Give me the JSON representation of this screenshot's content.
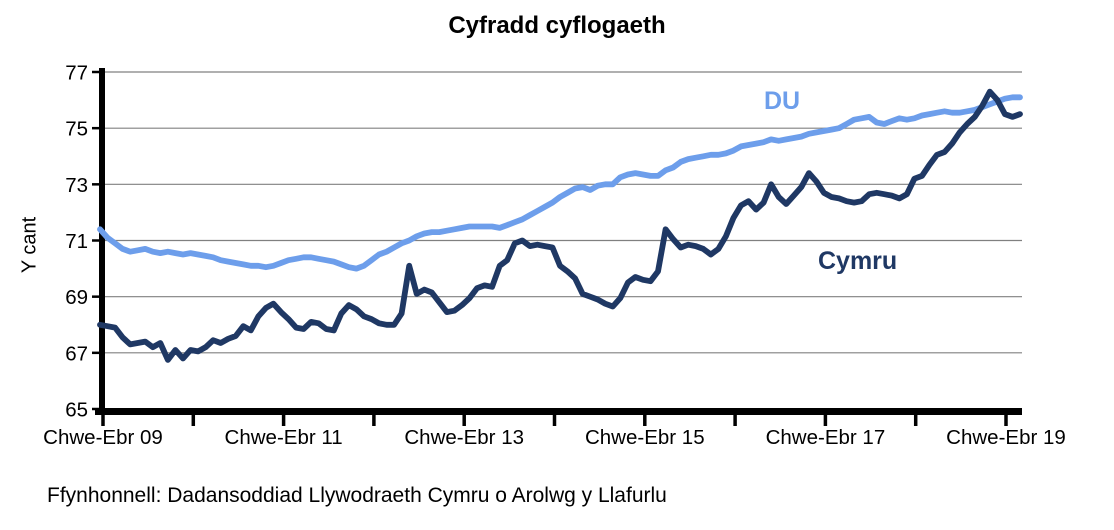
{
  "page": {
    "title": "Cyfradd cyflogaeth",
    "source": "Ffynhonnell: Dadansoddiad Llywodraeth Cymru o Arolwg y Llafurlu"
  },
  "colors": {
    "du": "#6D9EEB",
    "cymru": "#1F3864",
    "axis": "#000000",
    "grid": "#808080",
    "text": "#000000"
  },
  "chart_data": {
    "type": "line",
    "title": "Cyfradd cyflogaeth",
    "xlabel": "",
    "ylabel": "Y cant",
    "ylim": [
      65,
      77
    ],
    "yticks": [
      65,
      67,
      69,
      71,
      73,
      75,
      77
    ],
    "grid": "horizontal gridlines at each y tick",
    "legend_position": "inline labels next to lines",
    "x_tick_labels": [
      "Chwe-Ebr 09",
      "Chwe-Ebr 11",
      "Chwe-Ebr 13",
      "Chwe-Ebr 15",
      "Chwe-Ebr 17",
      "Chwe-Ebr 19"
    ],
    "x_num_minor_ticks": 11,
    "series": [
      {
        "name": "DU",
        "color": "#6D9EEB",
        "values": [
          71.4,
          71.1,
          70.9,
          70.7,
          70.6,
          70.65,
          70.7,
          70.6,
          70.55,
          70.6,
          70.55,
          70.5,
          70.55,
          70.5,
          70.45,
          70.4,
          70.3,
          70.25,
          70.2,
          70.15,
          70.1,
          70.1,
          70.05,
          70.1,
          70.2,
          70.3,
          70.35,
          70.4,
          70.4,
          70.35,
          70.3,
          70.25,
          70.15,
          70.05,
          70.0,
          70.1,
          70.3,
          70.5,
          70.6,
          70.75,
          70.9,
          71.0,
          71.15,
          71.25,
          71.3,
          71.3,
          71.35,
          71.4,
          71.45,
          71.5,
          71.5,
          71.5,
          71.5,
          71.45,
          71.55,
          71.65,
          71.75,
          71.9,
          72.05,
          72.2,
          72.35,
          72.55,
          72.7,
          72.85,
          72.9,
          72.8,
          72.95,
          73.0,
          73.0,
          73.25,
          73.35,
          73.4,
          73.35,
          73.3,
          73.3,
          73.5,
          73.6,
          73.8,
          73.9,
          73.95,
          74.0,
          74.05,
          74.05,
          74.1,
          74.2,
          74.35,
          74.4,
          74.45,
          74.5,
          74.6,
          74.55,
          74.6,
          74.65,
          74.7,
          74.8,
          74.85,
          74.9,
          74.95,
          75.0,
          75.15,
          75.3,
          75.35,
          75.4,
          75.2,
          75.15,
          75.25,
          75.35,
          75.3,
          75.35,
          75.45,
          75.5,
          75.55,
          75.6,
          75.55,
          75.55,
          75.6,
          75.65,
          75.75,
          75.85,
          75.95,
          76.05,
          76.1,
          76.1
        ]
      },
      {
        "name": "Cymru",
        "color": "#1F3864",
        "values": [
          68.0,
          67.95,
          67.9,
          67.55,
          67.3,
          67.35,
          67.4,
          67.2,
          67.35,
          66.75,
          67.1,
          66.8,
          67.1,
          67.05,
          67.2,
          67.45,
          67.35,
          67.5,
          67.6,
          67.95,
          67.8,
          68.3,
          68.6,
          68.75,
          68.45,
          68.2,
          67.9,
          67.85,
          68.1,
          68.05,
          67.85,
          67.8,
          68.4,
          68.7,
          68.55,
          68.3,
          68.2,
          68.05,
          68.0,
          68.0,
          68.4,
          70.1,
          69.1,
          69.25,
          69.15,
          68.8,
          68.45,
          68.5,
          68.7,
          68.95,
          69.3,
          69.4,
          69.35,
          70.1,
          70.3,
          70.9,
          71.0,
          70.8,
          70.85,
          70.8,
          70.75,
          70.1,
          69.9,
          69.65,
          69.1,
          69.0,
          68.9,
          68.75,
          68.65,
          68.95,
          69.5,
          69.7,
          69.6,
          69.55,
          69.9,
          71.4,
          71.05,
          70.75,
          70.85,
          70.8,
          70.7,
          70.5,
          70.7,
          71.15,
          71.8,
          72.25,
          72.4,
          72.1,
          72.35,
          73.0,
          72.55,
          72.3,
          72.6,
          72.9,
          73.4,
          73.1,
          72.7,
          72.55,
          72.5,
          72.4,
          72.35,
          72.4,
          72.65,
          72.7,
          72.65,
          72.6,
          72.5,
          72.65,
          73.2,
          73.3,
          73.7,
          74.05,
          74.15,
          74.45,
          74.85,
          75.15,
          75.4,
          75.8,
          76.3,
          76.0,
          75.5,
          75.4,
          75.5
        ]
      }
    ]
  }
}
